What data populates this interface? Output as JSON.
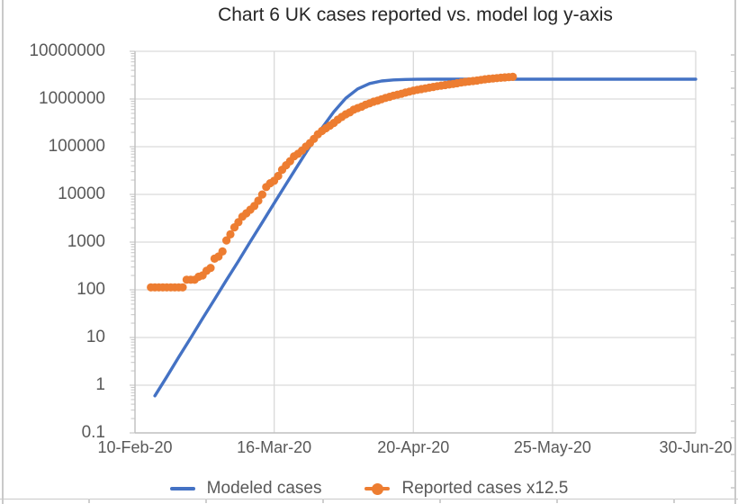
{
  "title": "Chart 6 UK cases reported vs. model log y-axis",
  "colors": {
    "model_blue": "#4472C4",
    "reported_orange": "#ED7D31",
    "gridline": "#D9D9D9",
    "axis_line": "#BFBFBF",
    "tick_label": "#595959",
    "title_color": "#262626",
    "worksheet_line": "#C9C9C9"
  },
  "legend": {
    "items": [
      {
        "label": "Modeled cases",
        "color": "#4472C4",
        "marker": "line"
      },
      {
        "label": "Reported cases x12.5",
        "color": "#ED7D31",
        "marker": "line-circle"
      }
    ]
  },
  "chart_data": {
    "type": "line",
    "title": "Chart 6 UK cases reported vs. model log y-axis",
    "grid": true,
    "legend_position": "bottom",
    "y_axis": {
      "scale": "log",
      "min": 0.1,
      "max": 10000000,
      "ticks": [
        {
          "label": "10000000",
          "value": 10000000
        },
        {
          "label": "1000000",
          "value": 1000000
        },
        {
          "label": "100000",
          "value": 100000
        },
        {
          "label": "10000",
          "value": 10000
        },
        {
          "label": "1000",
          "value": 1000
        },
        {
          "label": "100",
          "value": 100
        },
        {
          "label": "10",
          "value": 10
        },
        {
          "label": "1",
          "value": 1
        },
        {
          "label": "0.1",
          "value": 0.1
        }
      ]
    },
    "x_axis": {
      "type": "date",
      "day_zero": "10-Feb-20",
      "range_days": 141,
      "ticks": [
        {
          "label": "10-Feb-20",
          "day": 0
        },
        {
          "label": "16-Mar-20",
          "day": 35
        },
        {
          "label": "20-Apr-20",
          "day": 70
        },
        {
          "label": "25-May-20",
          "day": 105
        },
        {
          "label": "30-Jun-20",
          "day": 141
        }
      ]
    },
    "series": [
      {
        "name": "Modeled cases",
        "type": "line",
        "color": "#4472C4",
        "points_day_value": [
          [
            5,
            0.6
          ],
          [
            8,
            1.5
          ],
          [
            11,
            3.9
          ],
          [
            14,
            9.8
          ],
          [
            17,
            25
          ],
          [
            20,
            63
          ],
          [
            23,
            160
          ],
          [
            26,
            400
          ],
          [
            29,
            1020
          ],
          [
            32,
            2580
          ],
          [
            35,
            6540
          ],
          [
            38,
            16500
          ],
          [
            41,
            41400
          ],
          [
            44,
            102000
          ],
          [
            47,
            245000
          ],
          [
            50,
            540000
          ],
          [
            53,
            1040000
          ],
          [
            56,
            1630000
          ],
          [
            59,
            2110000
          ],
          [
            62,
            2380000
          ],
          [
            65,
            2510000
          ],
          [
            68,
            2563000
          ],
          [
            71,
            2585000
          ],
          [
            75,
            2596000
          ],
          [
            80,
            2599000
          ],
          [
            85,
            2600000
          ],
          [
            95,
            2600000
          ],
          [
            110,
            2600000
          ],
          [
            125,
            2600000
          ],
          [
            141,
            2600000
          ]
        ]
      },
      {
        "name": "Reported cases x12.5",
        "type": "scatter",
        "color": "#ED7D31",
        "multiplier": 12.5,
        "points_day_cases": [
          [
            4,
            9
          ],
          [
            5,
            9
          ],
          [
            6,
            9
          ],
          [
            7,
            9
          ],
          [
            8,
            9
          ],
          [
            9,
            9
          ],
          [
            10,
            9
          ],
          [
            11,
            9
          ],
          [
            12,
            9
          ],
          [
            13,
            13
          ],
          [
            14,
            13
          ],
          [
            15,
            13
          ],
          [
            16,
            15
          ],
          [
            17,
            16
          ],
          [
            18,
            20
          ],
          [
            19,
            23
          ],
          [
            20,
            36
          ],
          [
            21,
            40
          ],
          [
            22,
            51
          ],
          [
            23,
            87
          ],
          [
            24,
            116
          ],
          [
            25,
            163
          ],
          [
            26,
            209
          ],
          [
            27,
            273
          ],
          [
            28,
            321
          ],
          [
            29,
            382
          ],
          [
            30,
            456
          ],
          [
            31,
            590
          ],
          [
            32,
            798
          ],
          [
            33,
            1140
          ],
          [
            34,
            1372
          ],
          [
            35,
            1543
          ],
          [
            36,
            1950
          ],
          [
            37,
            2626
          ],
          [
            38,
            3269
          ],
          [
            39,
            3983
          ],
          [
            40,
            5018
          ],
          [
            41,
            5683
          ],
          [
            42,
            6650
          ],
          [
            43,
            8077
          ],
          [
            44,
            9529
          ],
          [
            45,
            11658
          ],
          [
            46,
            14543
          ],
          [
            47,
            17089
          ],
          [
            48,
            19522
          ],
          [
            49,
            22141
          ],
          [
            50,
            25150
          ],
          [
            51,
            29474
          ],
          [
            52,
            33718
          ],
          [
            53,
            38168
          ],
          [
            54,
            41903
          ],
          [
            55,
            47806
          ],
          [
            56,
            51608
          ],
          [
            57,
            55242
          ],
          [
            58,
            60733
          ],
          [
            59,
            65077
          ],
          [
            60,
            70272
          ],
          [
            61,
            73758
          ],
          [
            62,
            78991
          ],
          [
            63,
            84279
          ],
          [
            64,
            88621
          ],
          [
            65,
            93873
          ],
          [
            66,
            98476
          ],
          [
            67,
            103093
          ],
          [
            68,
            108692
          ],
          [
            69,
            114217
          ],
          [
            70,
            120067
          ],
          [
            71,
            124743
          ],
          [
            72,
            129044
          ],
          [
            73,
            133495
          ],
          [
            74,
            138078
          ],
          [
            75,
            143464
          ],
          [
            76,
            148377
          ],
          [
            77,
            152840
          ],
          [
            78,
            157149
          ],
          [
            79,
            161145
          ],
          [
            80,
            165221
          ],
          [
            81,
            171253
          ],
          [
            82,
            177454
          ],
          [
            83,
            182260
          ],
          [
            84,
            186599
          ],
          [
            85,
            190584
          ],
          [
            86,
            194990
          ],
          [
            87,
            201101
          ],
          [
            88,
            206715
          ],
          [
            89,
            211364
          ],
          [
            90,
            215260
          ],
          [
            91,
            219183
          ],
          [
            92,
            223060
          ],
          [
            93,
            226463
          ],
          [
            94,
            229705
          ],
          [
            95,
            233151
          ]
        ]
      }
    ]
  }
}
